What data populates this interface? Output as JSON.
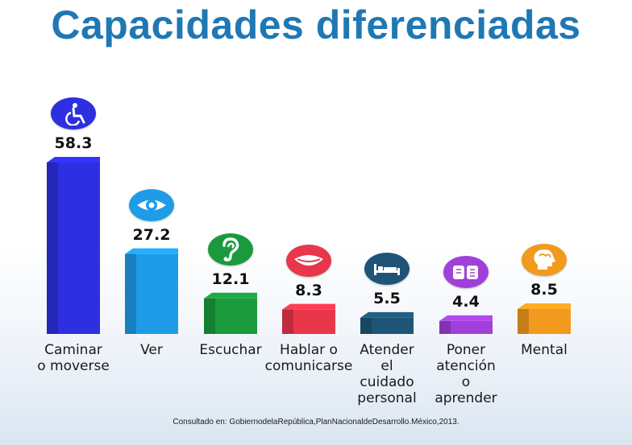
{
  "title": "Capacidades diferenciadas",
  "source": "Consultado en: GobiernodelaRepública,PlanNacionaldeDesarrollo.México,2013.",
  "chart_data": {
    "type": "bar",
    "title": "Capacidades diferenciadas",
    "categories": [
      "Caminar\no moverse",
      "Ver",
      "Escuchar",
      "Hablar o\ncomunicarse",
      "Atender\nel\ncuidado\npersonal",
      "Poner\natención\no\naprender",
      "Mental"
    ],
    "values": [
      58.3,
      27.2,
      12.1,
      8.3,
      5.5,
      4.4,
      8.5
    ],
    "value_labels": [
      "58.3",
      "27.2",
      "12.1",
      "8.3",
      "5.5",
      "4.4",
      "8.5"
    ],
    "colors": [
      "#2d2fe0",
      "#1e9ce8",
      "#1a9a3c",
      "#e8364a",
      "#1e5577",
      "#a040d8",
      "#f29a1e"
    ],
    "icons": [
      "wheelchair-icon",
      "eye-icon",
      "ear-icon",
      "mouth-icon",
      "bed-icon",
      "mind-icon",
      "head-icon"
    ],
    "ylim": [
      0,
      58.3
    ],
    "xlabel": "",
    "ylabel": "",
    "grid": false,
    "legend": "none"
  }
}
